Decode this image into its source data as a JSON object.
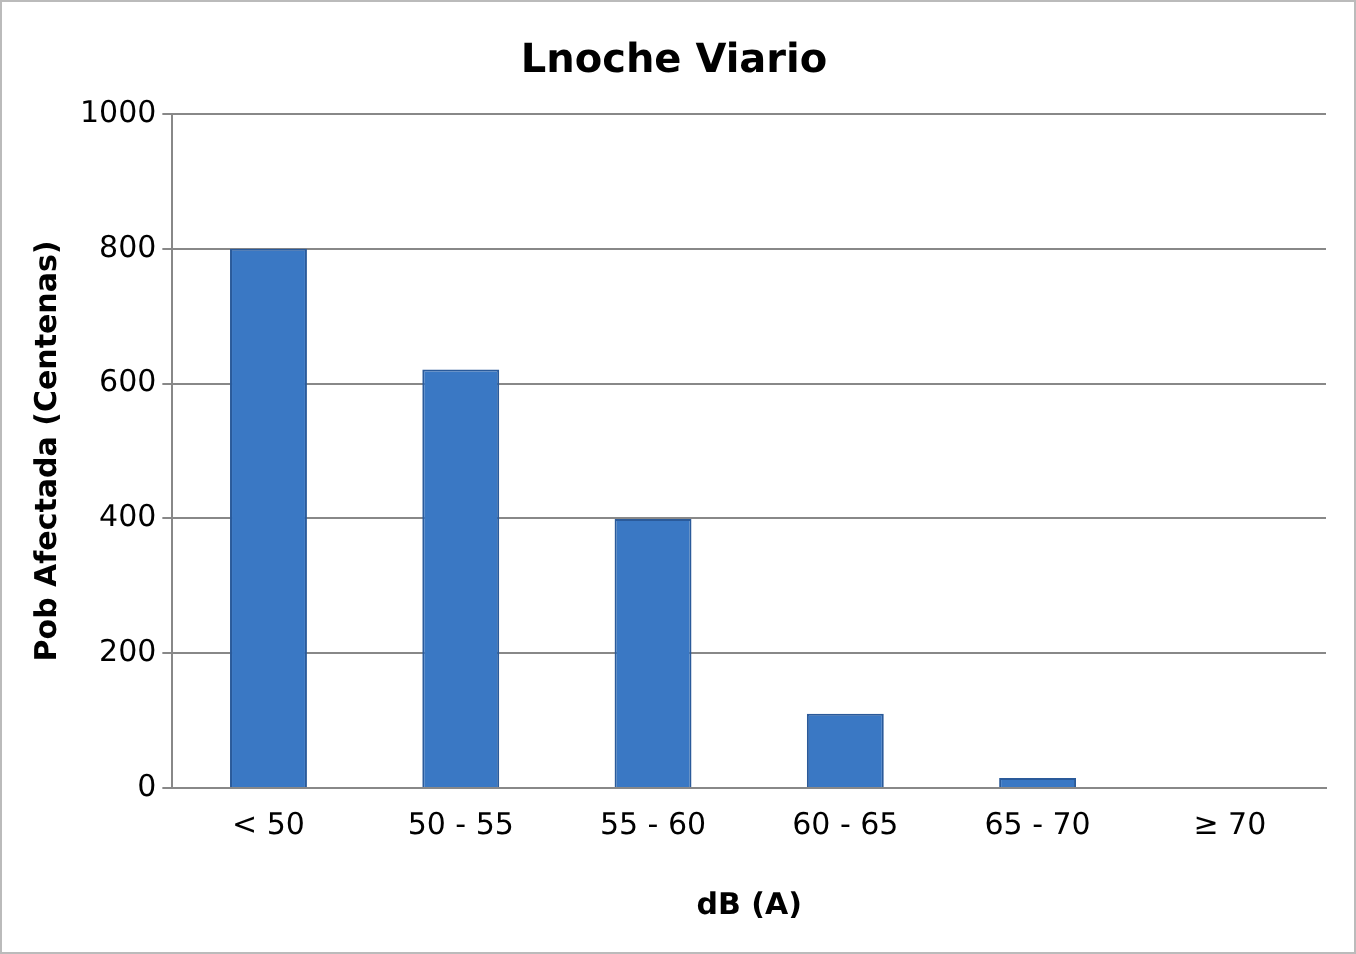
{
  "chart_data": {
    "type": "bar",
    "title": "Lnoche Viario",
    "xlabel": "dB (A)",
    "ylabel": "Pob Afectada (Centenas)",
    "categories": [
      "< 50",
      "50 - 55",
      "55 - 60",
      "60 - 65",
      "65 - 70",
      "≥ 70"
    ],
    "values": [
      800,
      621,
      399,
      110,
      15,
      0
    ],
    "color": "#3a78c4",
    "ylim": [
      0,
      1000
    ],
    "yticks": [
      0,
      200,
      400,
      600,
      800,
      1000
    ],
    "grid": "y",
    "legend": false
  }
}
